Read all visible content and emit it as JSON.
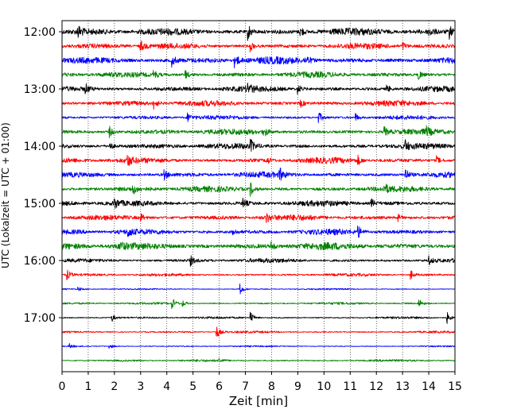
{
  "chart_data": {
    "type": "line",
    "title": "",
    "xlabel": "Zeit  [min]",
    "ylabel": "UTC (Lokalzeit = UTC + 01:00)",
    "xlim": [
      0,
      15
    ],
    "x_ticks": [
      0,
      1,
      2,
      3,
      4,
      5,
      6,
      7,
      8,
      9,
      10,
      11,
      12,
      13,
      14,
      15
    ],
    "x_tick_labels": [
      "0",
      "1",
      "2",
      "3",
      "4",
      "5",
      "6",
      "7",
      "8",
      "9",
      "10",
      "11",
      "12",
      "13",
      "14",
      "15"
    ],
    "vertical_grid": "dotted",
    "y_tick_labels": [
      "12:00",
      "13:00",
      "14:00",
      "15:00",
      "16:00",
      "17:00"
    ],
    "row_interval_minutes": 15,
    "color_cycle": [
      "#000000",
      "#ff0000",
      "#0000ff",
      "#008000"
    ],
    "series": [
      {
        "start": "12:00",
        "amplitude": 5,
        "spikes": [
          {
            "x": 0.6,
            "a": 8
          },
          {
            "x": 7.1,
            "a": 10
          },
          {
            "x": 9.1,
            "a": 7
          },
          {
            "x": 14.0,
            "a": 6
          },
          {
            "x": 14.8,
            "a": 8
          }
        ]
      },
      {
        "start": "12:15",
        "amplitude": 4,
        "spikes": [
          {
            "x": 3.0,
            "a": 7
          },
          {
            "x": 7.2,
            "a": 6
          },
          {
            "x": 13.0,
            "a": 5
          }
        ]
      },
      {
        "start": "12:30",
        "amplitude": 5,
        "spikes": [
          {
            "x": 4.2,
            "a": 7
          },
          {
            "x": 6.6,
            "a": 10
          },
          {
            "x": 9.3,
            "a": 7
          }
        ]
      },
      {
        "start": "12:45",
        "amplitude": 4,
        "spikes": [
          {
            "x": 3.5,
            "a": 6
          },
          {
            "x": 4.7,
            "a": 6
          },
          {
            "x": 13.6,
            "a": 7
          }
        ]
      },
      {
        "start": "13:00",
        "amplitude": 4,
        "spikes": [
          {
            "x": 0.9,
            "a": 6
          },
          {
            "x": 7.1,
            "a": 6
          },
          {
            "x": 9.0,
            "a": 6
          },
          {
            "x": 12.4,
            "a": 5
          }
        ]
      },
      {
        "start": "13:15",
        "amplitude": 4,
        "spikes": [
          {
            "x": 3.5,
            "a": 7
          },
          {
            "x": 9.1,
            "a": 5
          }
        ]
      },
      {
        "start": "13:30",
        "amplitude": 3,
        "spikes": [
          {
            "x": 4.8,
            "a": 6
          },
          {
            "x": 9.8,
            "a": 7
          },
          {
            "x": 11.2,
            "a": 5
          }
        ]
      },
      {
        "start": "13:45",
        "amplitude": 4,
        "spikes": [
          {
            "x": 1.8,
            "a": 7
          },
          {
            "x": 7.7,
            "a": 7
          },
          {
            "x": 12.3,
            "a": 6
          },
          {
            "x": 13.9,
            "a": 5
          }
        ]
      },
      {
        "start": "14:00",
        "amplitude": 4,
        "spikes": [
          {
            "x": 1.8,
            "a": 6
          },
          {
            "x": 7.2,
            "a": 7
          },
          {
            "x": 13.1,
            "a": 6
          }
        ]
      },
      {
        "start": "14:15",
        "amplitude": 4,
        "spikes": [
          {
            "x": 2.5,
            "a": 7
          },
          {
            "x": 7.8,
            "a": 5
          },
          {
            "x": 11.3,
            "a": 5
          },
          {
            "x": 14.3,
            "a": 5
          }
        ]
      },
      {
        "start": "14:30",
        "amplitude": 4,
        "spikes": [
          {
            "x": 3.9,
            "a": 6
          },
          {
            "x": 8.3,
            "a": 8
          },
          {
            "x": 13.1,
            "a": 9
          }
        ]
      },
      {
        "start": "14:45",
        "amplitude": 4,
        "spikes": [
          {
            "x": 2.7,
            "a": 6
          },
          {
            "x": 7.2,
            "a": 8
          },
          {
            "x": 12.3,
            "a": 6
          }
        ]
      },
      {
        "start": "15:00",
        "amplitude": 4,
        "spikes": [
          {
            "x": 2.0,
            "a": 7
          },
          {
            "x": 6.9,
            "a": 6
          },
          {
            "x": 11.8,
            "a": 6
          }
        ]
      },
      {
        "start": "15:15",
        "amplitude": 4,
        "spikes": [
          {
            "x": 3.0,
            "a": 5
          },
          {
            "x": 7.8,
            "a": 6
          },
          {
            "x": 12.8,
            "a": 5
          }
        ]
      },
      {
        "start": "15:30",
        "amplitude": 4,
        "spikes": [
          {
            "x": 2.5,
            "a": 7
          },
          {
            "x": 6.5,
            "a": 6
          },
          {
            "x": 11.3,
            "a": 7
          }
        ]
      },
      {
        "start": "15:45",
        "amplitude": 5,
        "spikes": [
          {
            "x": 2.2,
            "a": 6
          },
          {
            "x": 8.0,
            "a": 5
          }
        ]
      },
      {
        "start": "16:00",
        "amplitude": 3,
        "spikes": [
          {
            "x": 4.9,
            "a": 6
          },
          {
            "x": 14.0,
            "a": 5
          }
        ]
      },
      {
        "start": "16:15",
        "amplitude": 2,
        "spikes": [
          {
            "x": 0.2,
            "a": 6
          },
          {
            "x": 13.3,
            "a": 6
          }
        ]
      },
      {
        "start": "16:30",
        "amplitude": 1,
        "spikes": [
          {
            "x": 0.6,
            "a": 3
          },
          {
            "x": 6.8,
            "a": 7
          }
        ]
      },
      {
        "start": "16:45",
        "amplitude": 1.5,
        "spikes": [
          {
            "x": 4.2,
            "a": 7
          },
          {
            "x": 4.6,
            "a": 4
          },
          {
            "x": 13.6,
            "a": 7
          }
        ]
      },
      {
        "start": "17:00",
        "amplitude": 1.5,
        "spikes": [
          {
            "x": 1.9,
            "a": 5
          },
          {
            "x": 7.2,
            "a": 7
          },
          {
            "x": 14.7,
            "a": 7
          }
        ]
      },
      {
        "start": "17:15",
        "amplitude": 1.5,
        "spikes": [
          {
            "x": 5.9,
            "a": 8
          }
        ]
      },
      {
        "start": "17:30",
        "amplitude": 1,
        "spikes": [
          {
            "x": 0.3,
            "a": 3
          },
          {
            "x": 1.8,
            "a": 4
          }
        ]
      },
      {
        "start": "17:45",
        "amplitude": 1.5,
        "spikes": [
          {
            "x": 6.0,
            "a": 3
          }
        ]
      }
    ]
  }
}
